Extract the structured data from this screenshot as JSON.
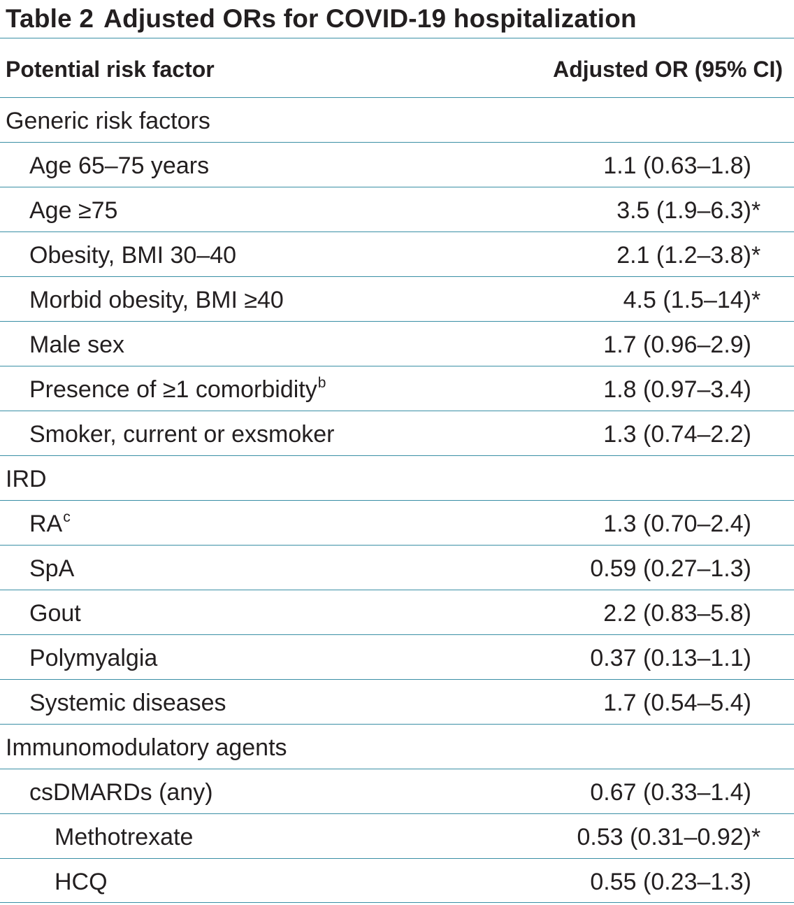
{
  "title": {
    "label": "Table 2",
    "text": "Adjusted ORs for COVID-19 hospitalization"
  },
  "columns": {
    "factor": "Potential risk factor",
    "value": "Adjusted OR (95% CI)"
  },
  "rows": [
    {
      "label": "Generic risk factors",
      "level": 0,
      "value": "",
      "star": ""
    },
    {
      "label": "Age 65–75 years",
      "level": 1,
      "value": "1.1 (0.63–1.8)",
      "star": ""
    },
    {
      "label": "Age ≥75",
      "level": 1,
      "value": "3.5 (1.9–6.3)",
      "star": "*"
    },
    {
      "label": "Obesity, BMI 30–40",
      "level": 1,
      "value": "2.1 (1.2–3.8)",
      "star": "*"
    },
    {
      "label": "Morbid obesity, BMI ≥40",
      "level": 1,
      "value": "4.5 (1.5–14)",
      "star": "*"
    },
    {
      "label": "Male sex",
      "level": 1,
      "value": "1.7 (0.96–2.9)",
      "star": ""
    },
    {
      "label": "Presence of ≥1 comorbidity",
      "note": "b",
      "level": 1,
      "value": "1.8 (0.97–3.4)",
      "star": ""
    },
    {
      "label": "Smoker, current or exsmoker",
      "level": 1,
      "value": "1.3 (0.74–2.2)",
      "star": ""
    },
    {
      "label": "IRD",
      "level": 0,
      "value": "",
      "star": ""
    },
    {
      "label": "RA",
      "note": "c",
      "level": 1,
      "value": "1.3 (0.70–2.4)",
      "star": ""
    },
    {
      "label": "SpA",
      "level": 1,
      "value": "0.59 (0.27–1.3)",
      "star": ""
    },
    {
      "label": "Gout",
      "level": 1,
      "value": "2.2 (0.83–5.8)",
      "star": ""
    },
    {
      "label": "Polymyalgia",
      "level": 1,
      "value": "0.37 (0.13–1.1)",
      "star": ""
    },
    {
      "label": "Systemic diseases",
      "level": 1,
      "value": "1.7 (0.54–5.4)",
      "star": ""
    },
    {
      "label": "Immunomodulatory agents",
      "level": 0,
      "value": "",
      "star": ""
    },
    {
      "label": "csDMARDs (any)",
      "level": 1,
      "value": "0.67 (0.33–1.4)",
      "star": ""
    },
    {
      "label": "Methotrexate",
      "level": 2,
      "value": "0.53 (0.31–0.92)",
      "star": "*"
    },
    {
      "label": "HCQ",
      "level": 2,
      "value": "0.55 (0.23–1.3)",
      "star": ""
    }
  ]
}
